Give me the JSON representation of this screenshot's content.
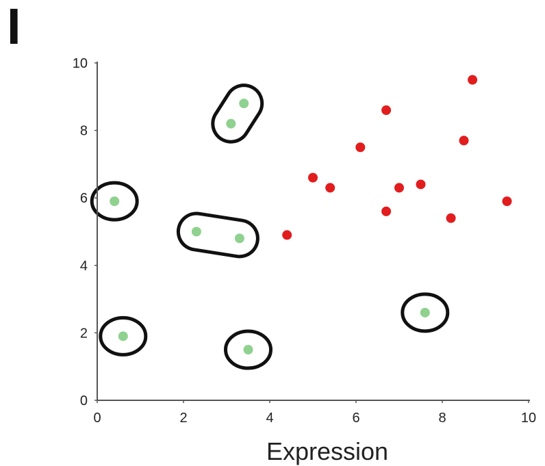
{
  "panel_label": "I",
  "chart_data": {
    "type": "scatter",
    "xlabel": "Expression",
    "ylabel": "",
    "xlim": [
      0,
      10
    ],
    "ylim": [
      0,
      10
    ],
    "x_ticks": [
      0,
      2,
      4,
      6,
      8,
      10
    ],
    "y_ticks": [
      0,
      2,
      4,
      6,
      8,
      10
    ],
    "grid": false,
    "colors": {
      "green": "#8fd18f",
      "red": "#e11d1d",
      "outline": "#111111",
      "axis": "#555555"
    },
    "series": [
      {
        "color": "green",
        "points": [
          {
            "x": 3.4,
            "y": 8.8
          },
          {
            "x": 3.1,
            "y": 8.2
          },
          {
            "x": 0.4,
            "y": 5.9
          },
          {
            "x": 2.3,
            "y": 5.0
          },
          {
            "x": 3.3,
            "y": 4.8
          },
          {
            "x": 0.6,
            "y": 1.9
          },
          {
            "x": 3.5,
            "y": 1.5
          },
          {
            "x": 7.6,
            "y": 2.6
          }
        ]
      },
      {
        "color": "red",
        "points": [
          {
            "x": 8.7,
            "y": 9.5
          },
          {
            "x": 6.7,
            "y": 8.6
          },
          {
            "x": 8.5,
            "y": 7.7
          },
          {
            "x": 6.1,
            "y": 7.5
          },
          {
            "x": 5.0,
            "y": 6.6
          },
          {
            "x": 5.4,
            "y": 6.3
          },
          {
            "x": 7.0,
            "y": 6.3
          },
          {
            "x": 7.5,
            "y": 6.4
          },
          {
            "x": 6.7,
            "y": 5.6
          },
          {
            "x": 9.5,
            "y": 5.9
          },
          {
            "x": 8.2,
            "y": 5.4
          },
          {
            "x": 4.4,
            "y": 4.9
          }
        ]
      }
    ],
    "outlines": [
      {
        "shape": "capsule",
        "points": [
          {
            "x": 3.1,
            "y": 8.2
          },
          {
            "x": 3.4,
            "y": 8.8
          }
        ]
      },
      {
        "shape": "circle",
        "points": [
          {
            "x": 0.4,
            "y": 5.9
          }
        ]
      },
      {
        "shape": "capsule",
        "points": [
          {
            "x": 2.3,
            "y": 5.0
          },
          {
            "x": 3.3,
            "y": 4.8
          }
        ]
      },
      {
        "shape": "circle",
        "points": [
          {
            "x": 0.6,
            "y": 1.9
          }
        ]
      },
      {
        "shape": "circle",
        "points": [
          {
            "x": 3.5,
            "y": 1.5
          }
        ]
      },
      {
        "shape": "circle",
        "points": [
          {
            "x": 7.6,
            "y": 2.6
          }
        ]
      }
    ]
  }
}
